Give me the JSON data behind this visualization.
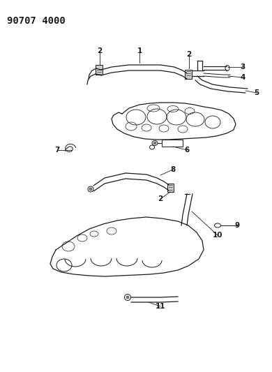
{
  "title": "90707 4000",
  "bg_color": "#ffffff",
  "line_color": "#1a1a1a",
  "title_fontsize": 10,
  "label_fontsize": 7.5,
  "figsize": [
    3.9,
    5.33
  ],
  "dpi": 100
}
